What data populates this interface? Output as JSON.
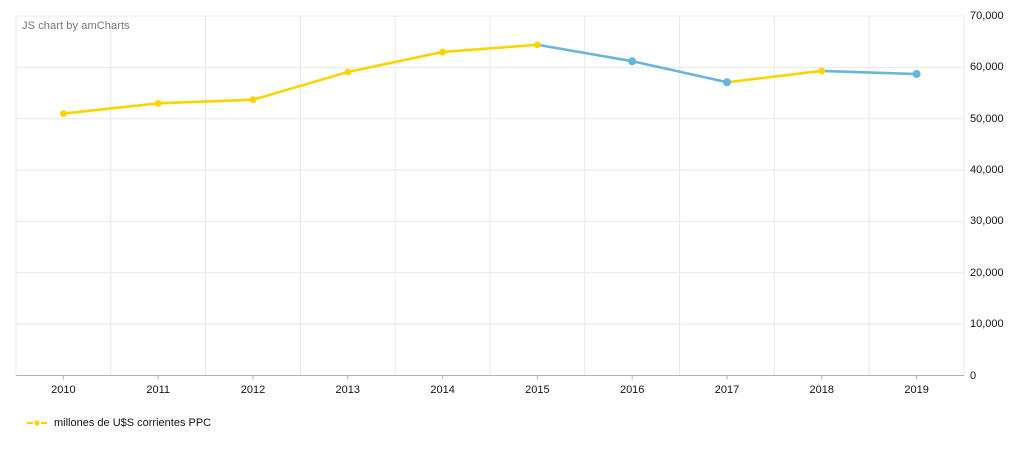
{
  "watermark": "JS chart by amCharts",
  "legend": {
    "label": "millones de U$S corrientes PPC",
    "marker_color": "#FDD400"
  },
  "colors": {
    "yellow": "#FDD400",
    "blue": "#67B7DC",
    "grid": "#E8E8E8",
    "axis": "#B3B3B3",
    "text": "#141414",
    "watermark_text": "#777777",
    "background": "#FFFFFF"
  },
  "chart_data": {
    "type": "line",
    "title": "",
    "xlabel": "",
    "ylabel": "",
    "categories": [
      "2010",
      "2011",
      "2012",
      "2013",
      "2014",
      "2015",
      "2016",
      "2017",
      "2018",
      "2019"
    ],
    "series": [
      {
        "name": "millones de U$S corrientes PPC",
        "values": [
          51000,
          53000,
          53700,
          59100,
          63000,
          64400,
          61200,
          57100,
          59300,
          58700
        ]
      }
    ],
    "segment_colors": [
      "yellow",
      "yellow",
      "yellow",
      "yellow",
      "yellow",
      "blue",
      "blue",
      "yellow",
      "blue"
    ],
    "point_colors": [
      "yellow",
      "yellow",
      "yellow",
      "yellow",
      "yellow",
      "yellow",
      "blue",
      "blue",
      "yellow",
      "blue"
    ],
    "ylim": [
      0,
      70000
    ],
    "yticks": [
      0,
      10000,
      20000,
      30000,
      40000,
      50000,
      60000,
      70000
    ],
    "ytick_labels": [
      "0",
      "10,000",
      "20,000",
      "30,000",
      "40,000",
      "50,000",
      "60,000",
      "70,000"
    ],
    "grid": true,
    "y_axis_position": "right",
    "legend_position": "bottom-left"
  }
}
